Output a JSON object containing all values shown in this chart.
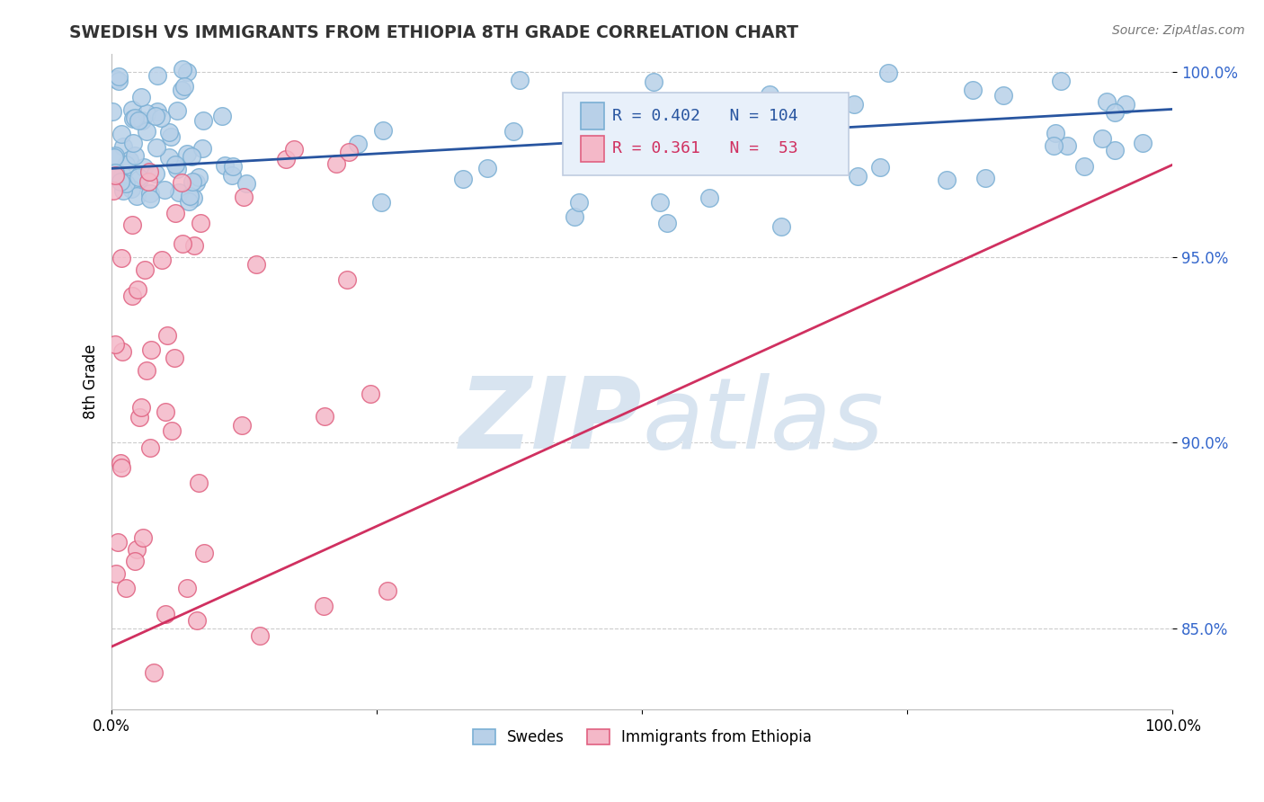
{
  "title": "SWEDISH VS IMMIGRANTS FROM ETHIOPIA 8TH GRADE CORRELATION CHART",
  "source_text": "Source: ZipAtlas.com",
  "ylabel": "8th Grade",
  "xlim": [
    0.0,
    1.0
  ],
  "ylim": [
    0.828,
    1.005
  ],
  "ytick_positions": [
    0.85,
    0.9,
    0.95,
    1.0
  ],
  "grid_color": "#cccccc",
  "background_color": "#ffffff",
  "swedes_color": "#b8d0e8",
  "swedes_edge_color": "#7aafd4",
  "ethiopia_color": "#f4b8c8",
  "ethiopia_edge_color": "#e06080",
  "swedes_line_color": "#2855a0",
  "ethiopia_line_color": "#d03060",
  "legend_box_color": "#e8f0fa",
  "legend_border_color": "#c0cce0",
  "R_swedes": 0.402,
  "N_swedes": 104,
  "R_ethiopia": 0.361,
  "N_ethiopia": 53,
  "watermark_zip": "ZIP",
  "watermark_atlas": "atlas",
  "watermark_color": "#d8e4f0"
}
